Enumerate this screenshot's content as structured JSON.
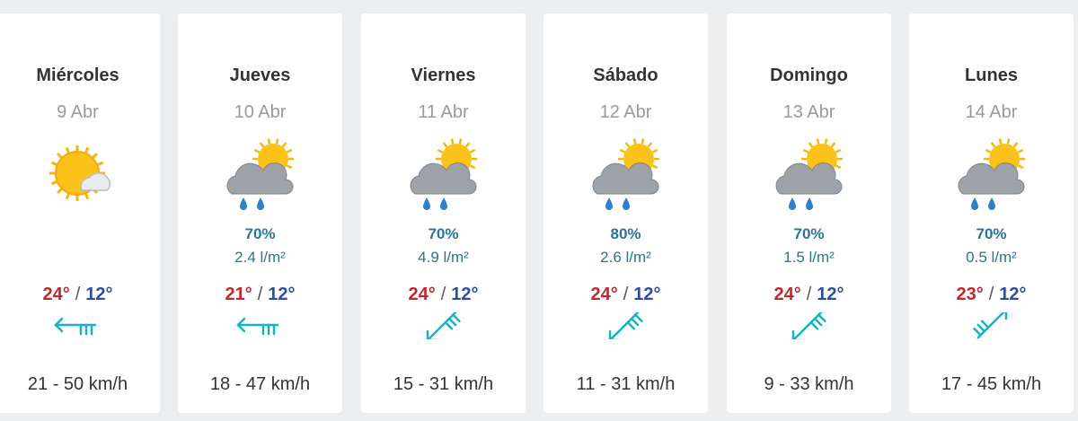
{
  "separator": "/",
  "days": [
    {
      "name": "Miércoles",
      "date": "9 Abr",
      "max": "24°",
      "min": "12°",
      "wind": "21 - 50 km/h"
    },
    {
      "name": "Jueves",
      "date": "10 Abr",
      "precip": "70%",
      "amount": "2.4 l/m²",
      "max": "21°",
      "min": "12°",
      "wind": "18 - 47 km/h"
    },
    {
      "name": "Viernes",
      "date": "11 Abr",
      "precip": "70%",
      "amount": "4.9 l/m²",
      "max": "24°",
      "min": "12°",
      "wind": "15 - 31 km/h"
    },
    {
      "name": "Sábado",
      "date": "12 Abr",
      "precip": "80%",
      "amount": "2.6 l/m²",
      "max": "24°",
      "min": "12°",
      "wind": "11 - 31 km/h"
    },
    {
      "name": "Domingo",
      "date": "13 Abr",
      "precip": "70%",
      "amount": "1.5 l/m²",
      "max": "24°",
      "min": "12°",
      "wind": "9 - 33 km/h"
    },
    {
      "name": "Lunes",
      "date": "14 Abr",
      "precip": "70%",
      "amount": "0.5 l/m²",
      "max": "23°",
      "min": "12°",
      "wind": "17 - 45 km/h"
    }
  ]
}
